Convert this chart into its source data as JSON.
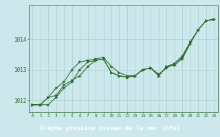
{
  "background_color": "#cce8ec",
  "plot_bg_color": "#cce8ec",
  "label_bar_color": "#2d6a2d",
  "line_color": "#2d6a2d",
  "marker_color": "#2d6a2d",
  "grid_color": "#aacccc",
  "xlabel": "Graphe pression niveau de la mer (hPa)",
  "xlabel_fontsize": 6.5,
  "xlim": [
    -0.5,
    23.5
  ],
  "ylim": [
    1011.6,
    1015.1
  ],
  "yticks": [
    1012,
    1013,
    1014
  ],
  "ytick_labels": [
    "1012",
    "1013",
    "1014"
  ],
  "xticks": [
    0,
    1,
    2,
    3,
    4,
    5,
    6,
    7,
    8,
    9,
    10,
    11,
    12,
    13,
    14,
    15,
    16,
    17,
    18,
    19,
    20,
    21,
    22,
    23
  ],
  "series": [
    [
      1011.85,
      1011.85,
      1011.85,
      1012.1,
      1012.4,
      1012.6,
      1013.0,
      1013.25,
      1013.3,
      1013.35,
      1012.9,
      1012.8,
      1012.75,
      1012.8,
      1013.0,
      1013.05,
      1012.8,
      1013.1,
      1013.2,
      1013.4,
      1013.9,
      1014.3,
      1014.6,
      1014.65
    ],
    [
      1011.85,
      1011.85,
      1012.1,
      1012.15,
      1012.5,
      1012.65,
      1012.8,
      1013.1,
      1013.3,
      1013.35,
      1012.9,
      1012.8,
      1012.75,
      1012.8,
      1013.0,
      1013.05,
      1012.8,
      1013.1,
      1013.15,
      1013.35,
      1013.85,
      1014.3,
      1014.6,
      1014.65
    ],
    [
      1011.85,
      1011.85,
      1012.1,
      1012.4,
      1012.6,
      1013.0,
      1013.25,
      1013.3,
      1013.35,
      1013.4,
      1013.1,
      1012.9,
      1012.8,
      1012.8,
      1013.0,
      1013.05,
      1012.85,
      1013.05,
      1013.2,
      1013.45,
      1013.9,
      1014.3,
      1014.6,
      1014.65
    ]
  ]
}
